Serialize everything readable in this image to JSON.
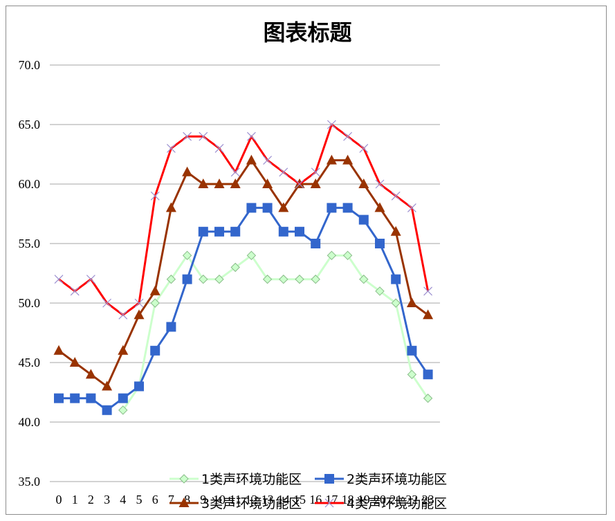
{
  "chart_data": {
    "type": "line",
    "title": "图表标题",
    "categories": [
      "0",
      "1",
      "2",
      "3",
      "4",
      "5",
      "6",
      "7",
      "8",
      "9",
      "10",
      "11",
      "12",
      "13",
      "14",
      "15",
      "16",
      "17",
      "18",
      "19",
      "20",
      "21",
      "22",
      "23"
    ],
    "ylim": [
      35,
      70
    ],
    "yticks": [
      "35.0",
      "40.0",
      "45.0",
      "50.0",
      "55.0",
      "60.0",
      "65.0",
      "70.0"
    ],
    "grid": true,
    "legend_position": "bottom",
    "series": [
      {
        "name": "1类声环境功能区",
        "color": "#ccffcc",
        "marker": "diamond",
        "values": [
          null,
          null,
          null,
          null,
          41,
          43,
          50,
          52,
          54,
          52,
          52,
          53,
          54,
          52,
          52,
          52,
          52,
          54,
          54,
          52,
          51,
          50,
          44,
          42
        ]
      },
      {
        "name": "2类声环境功能区",
        "color": "#3366cc",
        "marker": "square",
        "values": [
          42,
          42,
          42,
          41,
          42,
          43,
          46,
          48,
          52,
          56,
          56,
          56,
          58,
          58,
          56,
          56,
          55,
          58,
          58,
          57,
          55,
          52,
          46,
          44
        ]
      },
      {
        "name": "3类声环境功能区",
        "color": "#993300",
        "marker": "triangle",
        "values": [
          46,
          45,
          44,
          43,
          46,
          49,
          51,
          58,
          61,
          60,
          60,
          60,
          62,
          60,
          58,
          60,
          60,
          62,
          62,
          60,
          58,
          56,
          50,
          49
        ]
      },
      {
        "name": "4类声环境功能区",
        "color": "#ff0000",
        "marker": "x",
        "values": [
          52,
          51,
          52,
          50,
          49,
          50,
          59,
          63,
          64,
          64,
          63,
          61,
          64,
          62,
          61,
          60,
          61,
          65,
          64,
          63,
          60,
          59,
          58,
          51
        ]
      }
    ]
  }
}
